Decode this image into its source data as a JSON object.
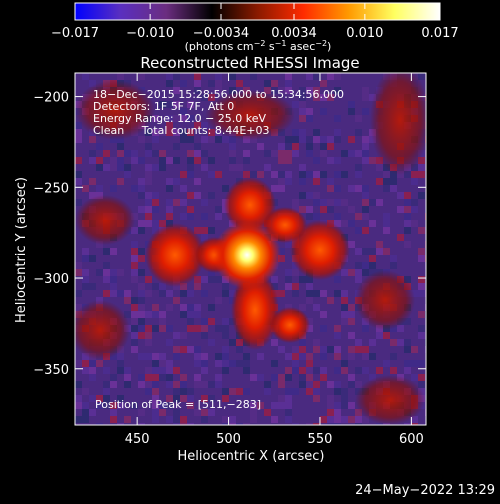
{
  "colorbar": {
    "ticks": [
      {
        "label": "−0.017",
        "value": -0.017
      },
      {
        "label": "−0.010",
        "value": -0.01
      },
      {
        "label": "−0.0034",
        "value": -0.0034
      },
      {
        "label": "0.0034",
        "value": 0.0034
      },
      {
        "label": "0.010",
        "value": 0.01
      },
      {
        "label": "0.017",
        "value": 0.017
      }
    ],
    "range": [
      -0.017,
      0.017
    ],
    "units_label": "(photons cm",
    "units_exp1": "−2",
    "units_mid": " s",
    "units_exp2": "−1",
    "units_mid2": " asec",
    "units_exp3": "−2",
    "units_end": ")",
    "stops": [
      "#0000ff",
      "#5a2fbf",
      "#6b2d80",
      "#000000",
      "#8a1a00",
      "#ff2a00",
      "#ff9a00",
      "#ffff60",
      "#ffffff"
    ]
  },
  "plot": {
    "title": "Reconstructed RHESSI Image",
    "xlabel": "Heliocentric X (arcsec)",
    "ylabel": "Heliocentric Y (arcsec)",
    "xlim": [
      416,
      608
    ],
    "ylim": [
      -381,
      -187
    ],
    "xticks": [
      {
        "label": "450",
        "value": 450
      },
      {
        "label": "500",
        "value": 500
      },
      {
        "label": "550",
        "value": 550
      },
      {
        "label": "600",
        "value": 600
      }
    ],
    "yticks": [
      {
        "label": "−200",
        "value": -200
      },
      {
        "label": "−250",
        "value": -250
      },
      {
        "label": "−300",
        "value": -300
      },
      {
        "label": "−350",
        "value": -350
      }
    ],
    "info": [
      "18−Dec−2015 15:28:56.000 to 15:34:56.000",
      "Detectors: 1F 5F 7F, Att 0",
      "Energy Range: 12.0 − 25.0 keV",
      "Clean     Total counts: 8.44E+03"
    ],
    "peak_label": "Position of Peak = [511,−283]",
    "peak": [
      511,
      -283
    ]
  },
  "footer": {
    "date": "24−May−2022 13:29"
  }
}
